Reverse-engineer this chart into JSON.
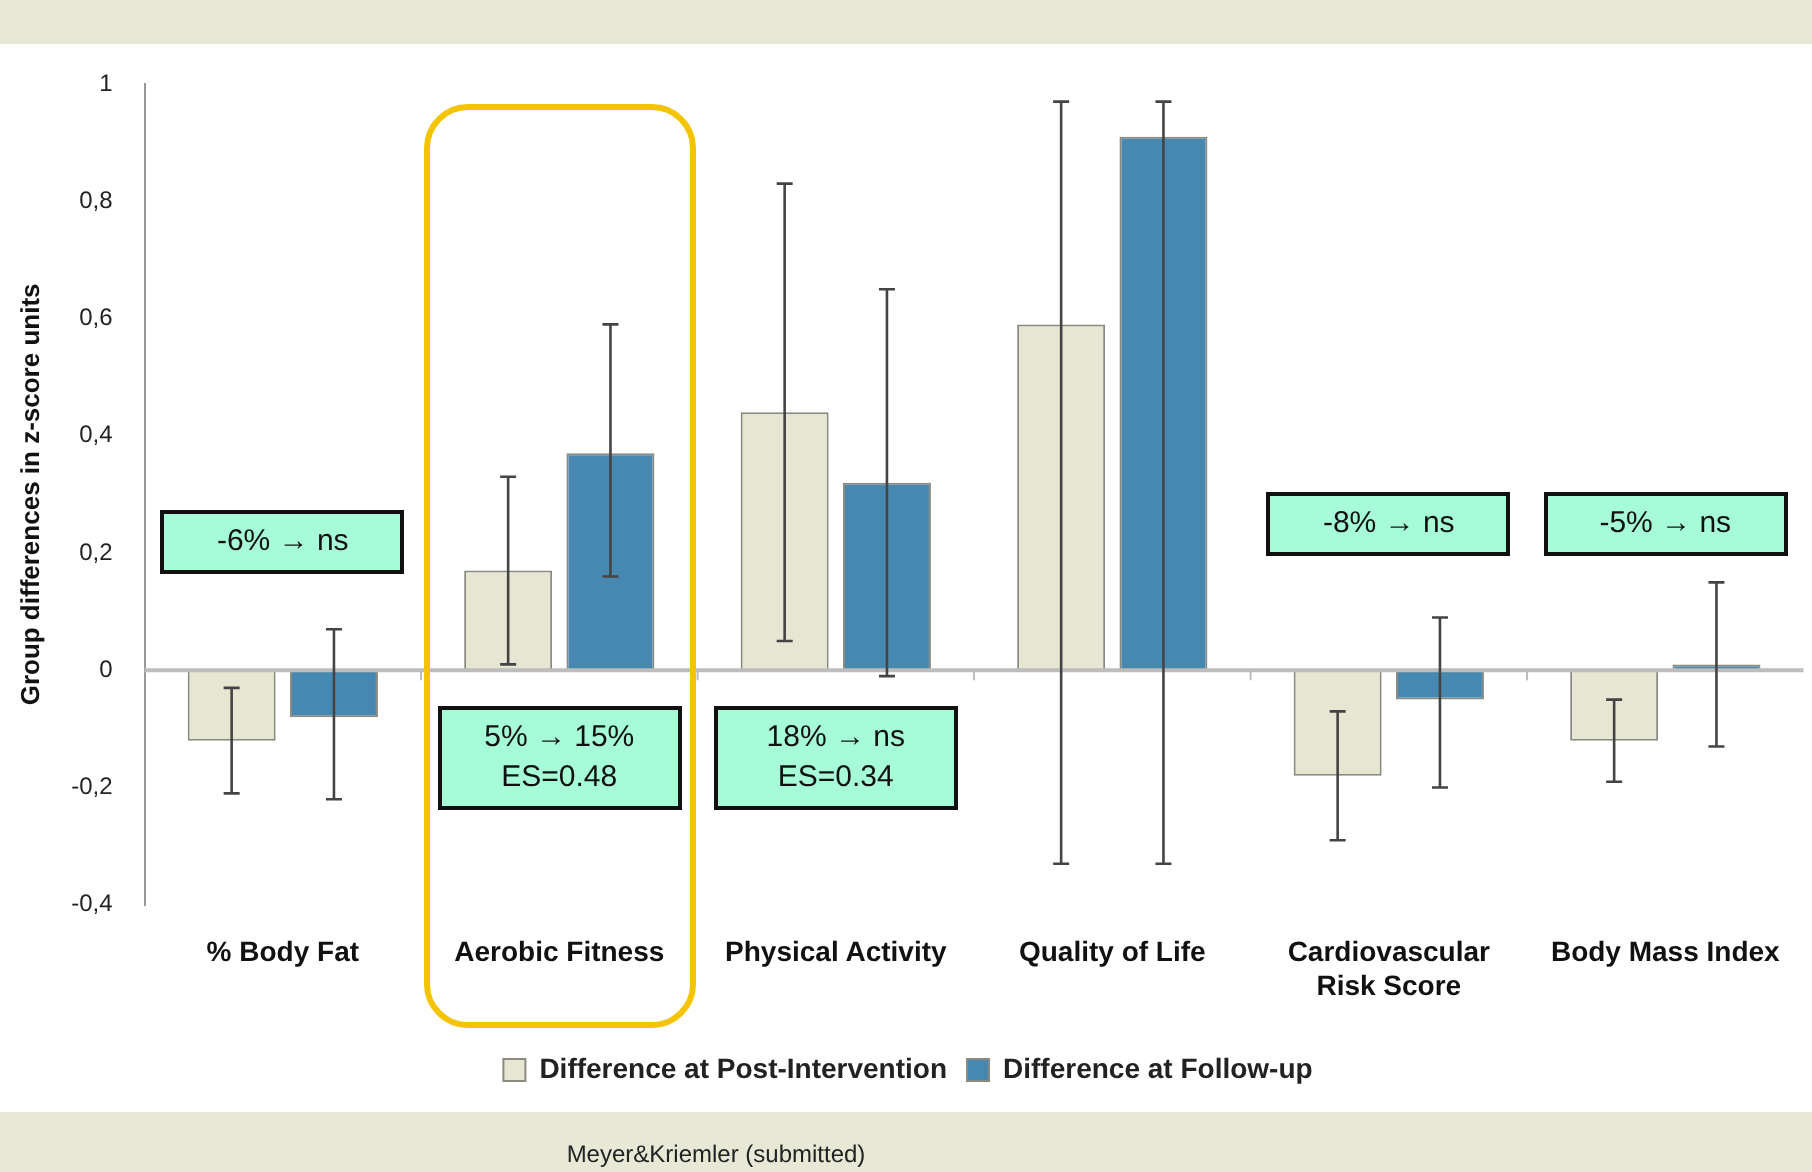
{
  "chart_data": {
    "type": "bar",
    "ylabel": "Group differences in z-score units",
    "categories": [
      "% Body Fat",
      "Aerobic Fitness",
      "Physical Activity",
      "Quality of Life",
      "Cardiovascular Risk Score",
      "Body Mass Index"
    ],
    "series": [
      {
        "name": "Difference at Post-Intervention",
        "color": "#e6e6d2",
        "values": [
          -0.12,
          0.17,
          0.44,
          0.59,
          -0.18,
          -0.12
        ],
        "errors": [
          [
            -0.21,
            -0.03
          ],
          [
            0.01,
            0.33
          ],
          [
            0.05,
            0.83
          ],
          [
            -0.33,
            0.97
          ],
          [
            -0.29,
            -0.07
          ],
          [
            -0.19,
            -0.05
          ]
        ]
      },
      {
        "name": "Difference at Follow-up",
        "color": "#4688b0",
        "values": [
          -0.08,
          0.37,
          0.32,
          0.91,
          -0.05,
          0.01
        ],
        "errors": [
          [
            -0.22,
            0.07
          ],
          [
            0.16,
            0.59
          ],
          [
            -0.01,
            0.65
          ],
          [
            -0.33,
            0.97
          ],
          [
            -0.2,
            0.09
          ],
          [
            -0.13,
            0.15
          ]
        ]
      }
    ],
    "ylim": [
      -0.4,
      1
    ],
    "yticks": [
      {
        "value": -0.4,
        "label": "-0,4"
      },
      {
        "value": -0.2,
        "label": "-0,2"
      },
      0,
      {
        "value": 0.2,
        "label": "0,2"
      },
      {
        "value": 0.4,
        "label": "0,4"
      },
      {
        "value": 0.6,
        "label": "0,6"
      },
      {
        "value": 0.8,
        "label": "0,8"
      },
      1
    ],
    "grid": false,
    "legend": "bottom",
    "ref_lines": [
      {
        "axis": "y",
        "value": 0,
        "color": "#bdbdbd"
      }
    ],
    "annotations": [
      "-6% → ns",
      "5% → 15%\nES=0.48",
      "18% → ns\nES=0.34",
      "-8% → ns",
      "-5% → ns",
      "Meyer&Kriemler (submitted)"
    ]
  }
}
